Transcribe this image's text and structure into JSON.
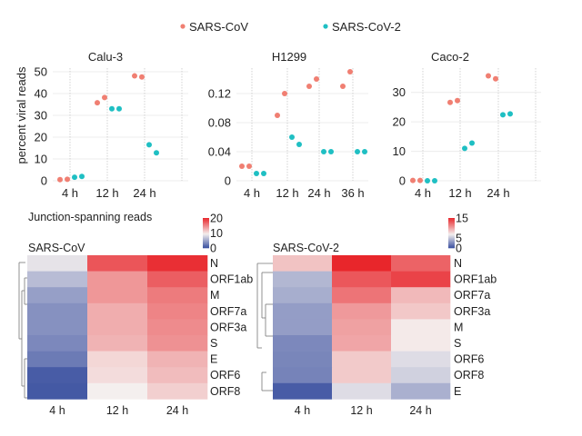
{
  "legend": {
    "items": [
      {
        "label": "SARS-CoV",
        "color": "#f07f72"
      },
      {
        "label": "SARS-CoV-2",
        "color": "#1fbfc3"
      }
    ]
  },
  "chart_data": [
    {
      "type": "scatter",
      "title": "Calu-3",
      "ylabel": "percent viral reads",
      "xlabel": "",
      "ylim": [
        0,
        50
      ],
      "yticks": [
        0,
        10,
        20,
        30,
        40,
        50
      ],
      "ytick_labels": [
        "0",
        "10",
        "20",
        "30",
        "40",
        "50"
      ],
      "categories": [
        "4 h",
        "12 h",
        "24 h"
      ],
      "series": [
        {
          "name": "SARS-CoV",
          "points": [
            {
              "x": "4 h",
              "values": [
                0.5,
                0.7
              ]
            },
            {
              "x": "12 h",
              "values": [
                35.8,
                38.2
              ]
            },
            {
              "x": "24 h",
              "values": [
                48.1,
                47.6
              ]
            }
          ]
        },
        {
          "name": "SARS-CoV-2",
          "points": [
            {
              "x": "4 h",
              "values": [
                1.6,
                2.0
              ]
            },
            {
              "x": "12 h",
              "values": [
                33.0,
                33.0
              ]
            },
            {
              "x": "24 h",
              "values": [
                16.5,
                12.8
              ]
            }
          ]
        }
      ]
    },
    {
      "type": "scatter",
      "title": "H1299",
      "ylabel": "",
      "xlabel": "",
      "ylim": [
        0,
        0.15
      ],
      "yticks": [
        0,
        0.04,
        0.08,
        0.12
      ],
      "ytick_labels": [
        "0",
        "0.04",
        "0.08",
        "0.12"
      ],
      "categories": [
        "4 h",
        "12 h",
        "24 h",
        "36 h"
      ],
      "series": [
        {
          "name": "SARS-CoV",
          "points": [
            {
              "x": "4 h",
              "values": [
                0.02,
                0.02
              ]
            },
            {
              "x": "12 h",
              "values": [
                0.09,
                0.12
              ]
            },
            {
              "x": "24 h",
              "values": [
                0.13,
                0.14
              ]
            },
            {
              "x": "36 h",
              "values": [
                0.13,
                0.15
              ]
            }
          ]
        },
        {
          "name": "SARS-CoV-2",
          "points": [
            {
              "x": "4 h",
              "values": [
                0.01,
                0.01
              ]
            },
            {
              "x": "12 h",
              "values": [
                0.06,
                0.05
              ]
            },
            {
              "x": "24 h",
              "values": [
                0.04,
                0.04
              ]
            },
            {
              "x": "36 h",
              "values": [
                0.04,
                0.04
              ]
            }
          ]
        }
      ]
    },
    {
      "type": "scatter",
      "title": "Caco-2",
      "ylabel": "",
      "xlabel": "",
      "ylim": [
        0,
        37
      ],
      "yticks": [
        0,
        10,
        20,
        30
      ],
      "ytick_labels": [
        "0",
        "10",
        "20",
        "30"
      ],
      "categories": [
        "4 h",
        "12 h",
        "24 h"
      ],
      "series": [
        {
          "name": "SARS-CoV",
          "points": [
            {
              "x": "4 h",
              "values": [
                0.1,
                0.1
              ]
            },
            {
              "x": "12 h",
              "values": [
                26.6,
                27.2
              ]
            },
            {
              "x": "24 h",
              "values": [
                35.6,
                34.6
              ]
            }
          ]
        },
        {
          "name": "SARS-CoV-2",
          "points": [
            {
              "x": "4 h",
              "values": [
                0.0,
                0.0
              ]
            },
            {
              "x": "12 h",
              "values": [
                11.0,
                12.8
              ]
            },
            {
              "x": "24 h",
              "values": [
                22.4,
                22.7
              ]
            }
          ]
        }
      ]
    },
    {
      "type": "heatmap",
      "section_title": "Junction-spanning reads",
      "title": "SARS-CoV",
      "columns": [
        "4 h",
        "12 h",
        "24 h"
      ],
      "rows": [
        "N",
        "ORF1ab",
        "M",
        "ORF7a",
        "ORF3a",
        "S",
        "E",
        "ORF6",
        "ORF8"
      ],
      "values": [
        [
          8.6,
          17.5,
          19.5
        ],
        [
          6.3,
          14.0,
          17.0
        ],
        [
          4.6,
          14.0,
          15.5
        ],
        [
          3.8,
          12.8,
          15.0
        ],
        [
          3.8,
          12.8,
          14.6
        ],
        [
          3.3,
          12.5,
          14.3
        ],
        [
          2.5,
          10.6,
          12.5
        ],
        [
          0.7,
          10.3,
          12.0
        ],
        [
          0.5,
          9.3,
          11.0
        ]
      ],
      "colorbar": {
        "min": 0,
        "max": 20,
        "ticks": [
          0,
          10,
          20
        ],
        "tick_labels": [
          "0",
          "10",
          "20"
        ],
        "low": "#3a50a0",
        "mid": "#f4efee",
        "high": "#e8262b",
        "mid_value": 9.3
      }
    },
    {
      "type": "heatmap",
      "title": "SARS-CoV-2",
      "columns": [
        "4 h",
        "12 h",
        "24 h"
      ],
      "rows": [
        "N",
        "ORF1ab",
        "ORF7a",
        "ORF3a",
        "M",
        "S",
        "ORF6",
        "ORF8",
        "E"
      ],
      "values": [
        [
          8.6,
          15.0,
          12.5
        ],
        [
          4.4,
          13.0,
          13.8
        ],
        [
          4.0,
          11.8,
          9.0
        ],
        [
          3.3,
          10.3,
          8.4
        ],
        [
          3.3,
          10.0,
          7.0
        ],
        [
          2.4,
          9.8,
          7.0
        ],
        [
          2.3,
          8.3,
          6.0
        ],
        [
          2.2,
          8.3,
          5.5
        ],
        [
          0.5,
          6.0,
          4.1
        ]
      ],
      "colorbar": {
        "min": 0,
        "max": 15,
        "ticks": [
          0,
          5,
          15
        ],
        "tick_labels": [
          "0",
          "5",
          "15"
        ],
        "low": "#3a50a0",
        "mid": "#f4efee",
        "high": "#e8262b",
        "mid_value": 6.8
      }
    }
  ]
}
